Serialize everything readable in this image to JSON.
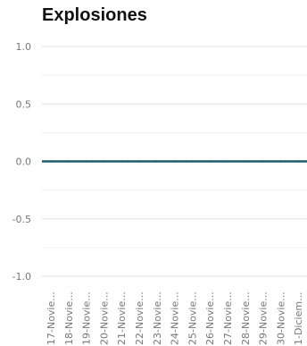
{
  "chart_data": {
    "type": "line",
    "title": "Explosiones",
    "xlabel": "",
    "ylabel": "",
    "categories": [
      "17-Novie...",
      "18-Novie...",
      "19-Novie...",
      "20-Novie...",
      "21-Novie...",
      "22-Novie...",
      "23-Novie...",
      "24-Novie...",
      "25-Novie...",
      "26-Novie...",
      "27-Novie...",
      "28-Novie...",
      "29-Novie...",
      "30-Novie...",
      "1-Diciem..."
    ],
    "series": [
      {
        "values": [
          0,
          0,
          0,
          0,
          0,
          0,
          0,
          0,
          0,
          0,
          0,
          0,
          0,
          0,
          0
        ],
        "color": "#1f5f6b"
      }
    ],
    "yticks": [
      "1.0",
      "0.5",
      "0.0",
      "-0.5",
      "-1.0"
    ],
    "ylim": [
      -1.0,
      1.0
    ],
    "grid": true,
    "legend": "none"
  }
}
